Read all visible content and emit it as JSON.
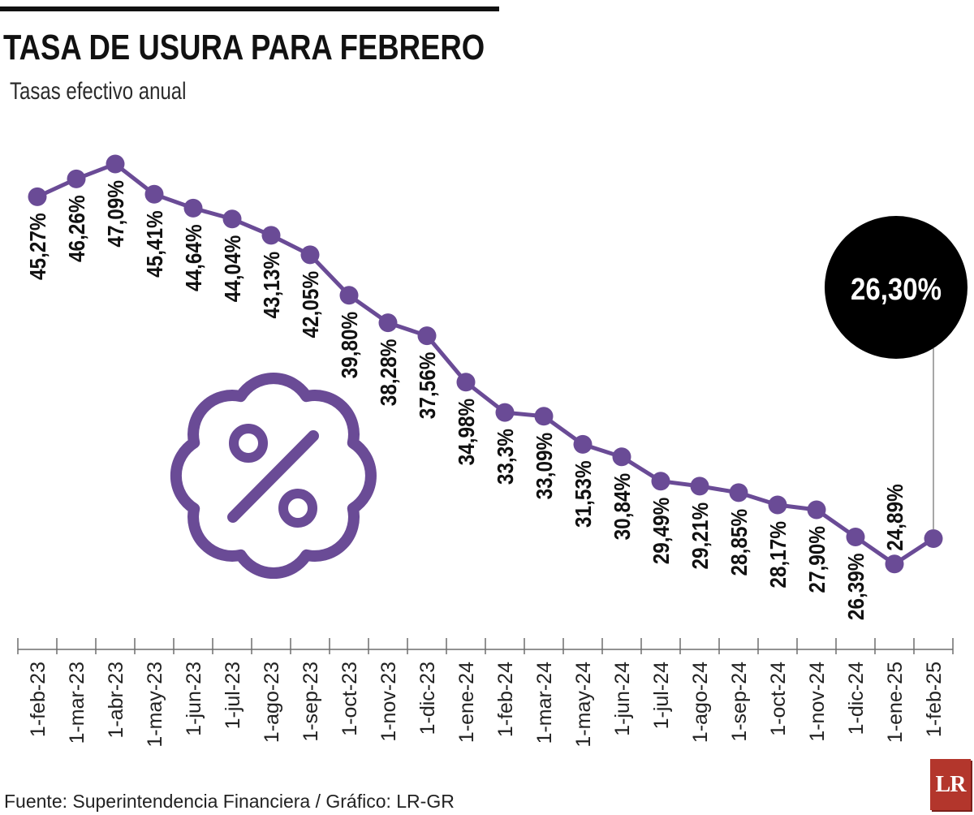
{
  "chart_data": {
    "type": "line",
    "title": "TASA DE USURA PARA FEBRERO",
    "subtitle": "Tasas efectivo anual",
    "xlabel": "",
    "ylabel": "",
    "categories": [
      "1-feb-23",
      "1-mar-23",
      "1-abr-23",
      "1-may-23",
      "1-jun-23",
      "1-jul-23",
      "1-ago-23",
      "1-sep-23",
      "1-oct-23",
      "1-nov-23",
      "1-dic-23",
      "1-ene-24",
      "1-feb-24",
      "1-mar-24",
      "1-may-24",
      "1-jun-24",
      "1-jul-24",
      "1-ago-24",
      "1-sep-24",
      "1-oct-24",
      "1-nov-24",
      "1-dic-24",
      "1-ene-25",
      "1-feb-25"
    ],
    "values": [
      45.27,
      46.26,
      47.09,
      45.41,
      44.64,
      44.04,
      43.13,
      42.05,
      39.8,
      38.28,
      37.56,
      34.98,
      33.3,
      33.09,
      31.53,
      30.84,
      29.49,
      29.21,
      28.85,
      28.17,
      27.9,
      26.39,
      24.89,
      26.3
    ],
    "value_labels": [
      "45,27%",
      "46,26%",
      "47,09%",
      "45,41%",
      "44,64%",
      "44,04%",
      "43,13%",
      "42,05%",
      "39,80%",
      "38,28%",
      "37,56%",
      "34,98%",
      "33,3%",
      "33,09%",
      "31,53%",
      "30,84%",
      "29,49%",
      "29,21%",
      "28,85%",
      "28,17%",
      "27,90%",
      "26,39%",
      "24,89%",
      "26,30%"
    ],
    "highlight_index": 23,
    "ylim": [
      20,
      50
    ],
    "grid": false,
    "y_axis_visible": false
  },
  "source": "Fuente: Superintendencia Financiera / Gráfico: LR-GR",
  "logo": {
    "text": "LR"
  },
  "decoration": {
    "icon": "percent-badge-icon"
  },
  "colors": {
    "line": "#6a4b96",
    "callout": "#000000",
    "text": "#111111",
    "logo": "#b3362c"
  }
}
